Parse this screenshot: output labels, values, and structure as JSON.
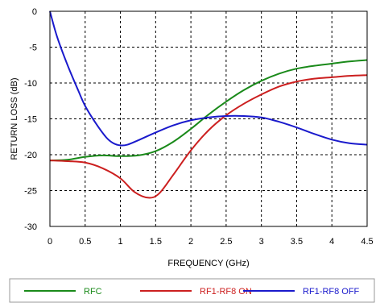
{
  "chart_data": {
    "type": "line",
    "title": "",
    "xlabel": "FREQUENCY (GHz)",
    "ylabel": "RETURN LOSS (dB)",
    "xlim": [
      0,
      4.5
    ],
    "ylim": [
      -30,
      0
    ],
    "xticks": [
      0,
      0.5,
      1,
      1.5,
      2,
      2.5,
      3,
      3.5,
      4,
      4.5
    ],
    "yticks": [
      0,
      -5,
      -10,
      -15,
      -20,
      -25,
      -30
    ],
    "xtick_labels": [
      "0",
      "0.5",
      "1",
      "1.5",
      "2",
      "2.5",
      "3",
      "3.5",
      "4",
      "4.5"
    ],
    "ytick_labels": [
      "0",
      "-5",
      "-10",
      "-15",
      "-20",
      "-25",
      "-30"
    ],
    "grid": true,
    "legend_position": "bottom",
    "series": [
      {
        "name": "RFC",
        "color": "#1a8a1a",
        "x": [
          0,
          0.25,
          0.5,
          0.75,
          1.0,
          1.25,
          1.5,
          1.75,
          2.0,
          2.25,
          2.5,
          2.75,
          3.0,
          3.25,
          3.5,
          3.75,
          4.0,
          4.25,
          4.5
        ],
        "y": [
          -20.8,
          -20.7,
          -20.3,
          -20.1,
          -20.2,
          -20.1,
          -19.5,
          -18.2,
          -16.4,
          -14.4,
          -12.6,
          -11.0,
          -9.7,
          -8.7,
          -8.0,
          -7.6,
          -7.3,
          -7.0,
          -6.8
        ]
      },
      {
        "name": "RF1-RF8 ON",
        "color": "#cc1f1f",
        "x": [
          0,
          0.25,
          0.5,
          0.75,
          1.0,
          1.2,
          1.4,
          1.55,
          1.75,
          2.0,
          2.25,
          2.5,
          2.75,
          3.0,
          3.25,
          3.5,
          3.75,
          4.0,
          4.25,
          4.5
        ],
        "y": [
          -20.8,
          -20.9,
          -21.1,
          -21.9,
          -23.3,
          -25.2,
          -26.0,
          -25.4,
          -22.8,
          -19.4,
          -16.6,
          -14.5,
          -12.9,
          -11.6,
          -10.5,
          -9.8,
          -9.4,
          -9.2,
          -9.0,
          -8.9
        ]
      },
      {
        "name": "RF1-RF8 OFF",
        "color": "#1a1acc",
        "x": [
          0,
          0.1,
          0.25,
          0.4,
          0.5,
          0.65,
          0.8,
          0.9,
          1.0,
          1.1,
          1.25,
          1.5,
          1.75,
          2.0,
          2.25,
          2.5,
          2.75,
          3.0,
          3.25,
          3.5,
          3.75,
          4.0,
          4.25,
          4.5
        ],
        "y": [
          0,
          -3.5,
          -7.5,
          -11.0,
          -13.2,
          -15.6,
          -17.6,
          -18.4,
          -18.7,
          -18.6,
          -18.0,
          -16.9,
          -15.9,
          -15.2,
          -14.8,
          -14.6,
          -14.6,
          -14.8,
          -15.4,
          -16.2,
          -17.1,
          -17.9,
          -18.4,
          -18.6
        ]
      }
    ]
  }
}
